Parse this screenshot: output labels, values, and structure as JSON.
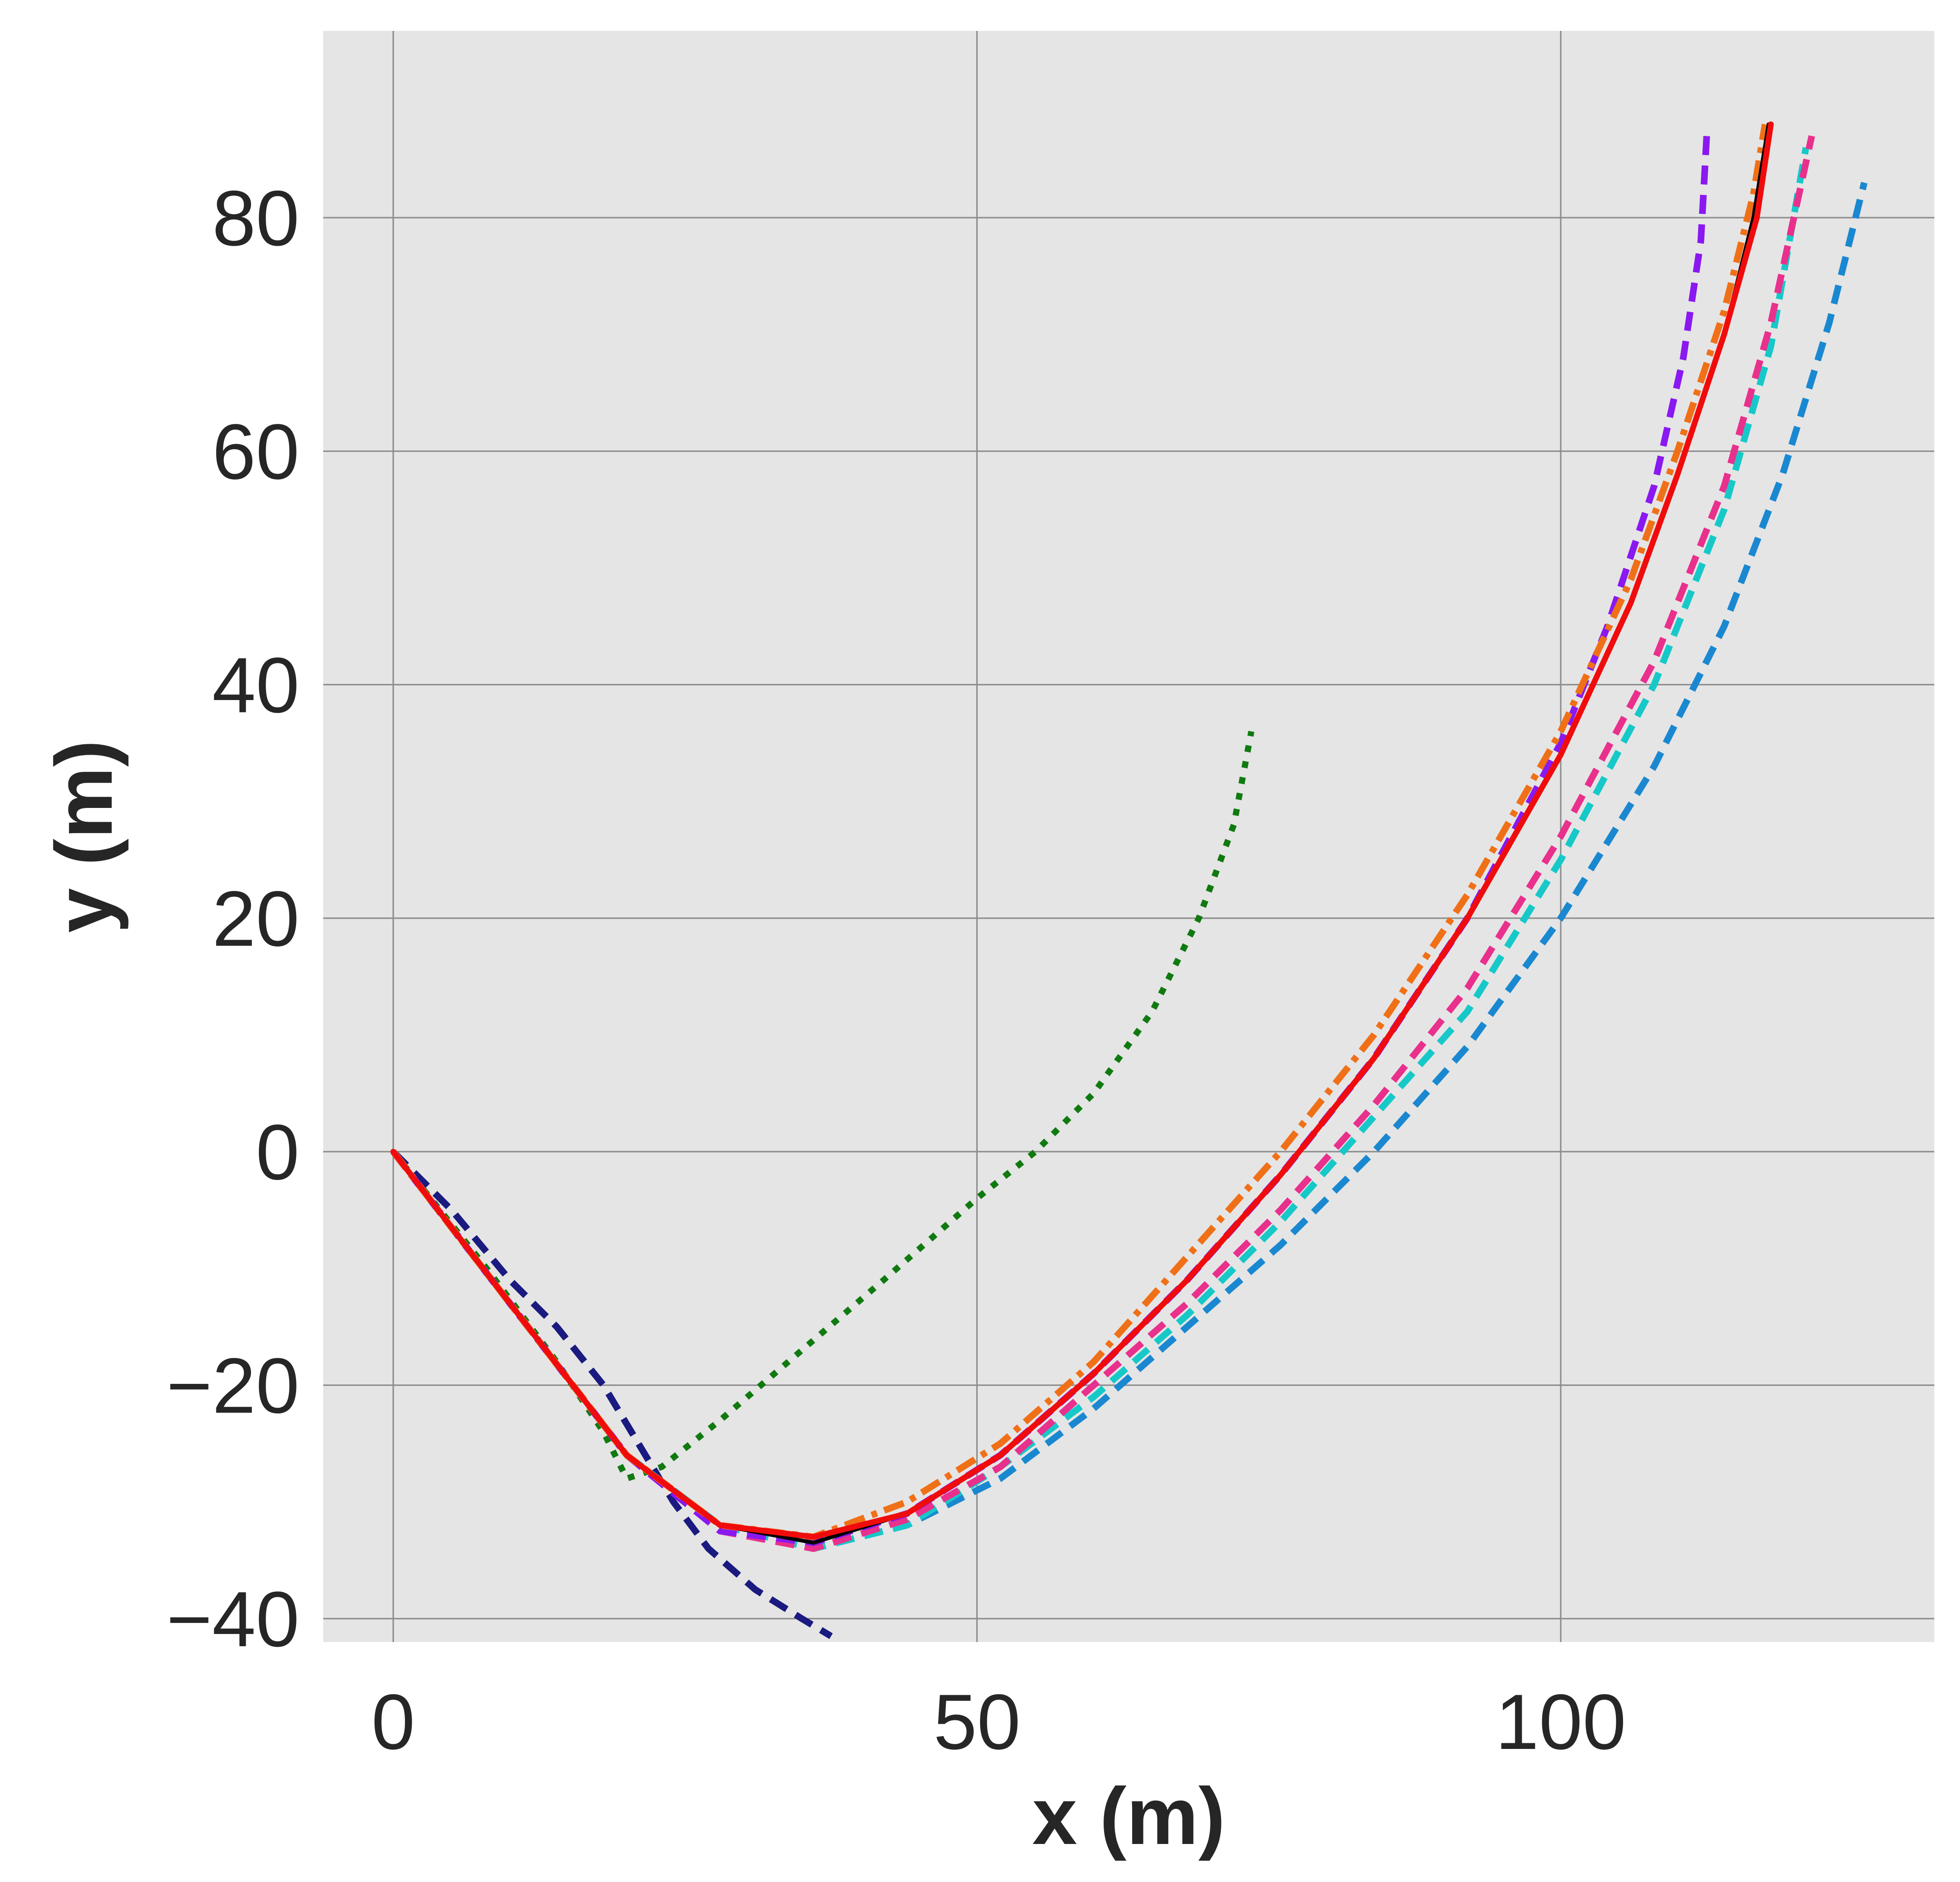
{
  "chart_data": {
    "type": "line",
    "title": "",
    "xlabel": "x (m)",
    "ylabel": "y (m)",
    "xlim": [
      -6,
      132
    ],
    "ylim": [
      -42,
      96
    ],
    "xticks": [
      0,
      50,
      100
    ],
    "yticks": [
      -40,
      -20,
      0,
      20,
      40,
      60,
      80
    ],
    "xtick_labels": [
      "0",
      "50",
      "100"
    ],
    "ytick_labels": [
      "−40",
      "−20",
      "0",
      "20",
      "40",
      "60",
      "80"
    ],
    "grid": true,
    "legend": "none",
    "background_color": "#e5e5e5",
    "series": [
      {
        "name": "green-dotted",
        "color": "#107a10",
        "style": "dotted",
        "x": [
          0,
          8,
          14,
          18,
          20,
          23,
          28,
          35,
          42,
          50,
          55,
          60,
          65,
          69,
          72,
          73.5
        ],
        "y": [
          0,
          -10,
          -18,
          -24,
          -28,
          -27,
          -23,
          -17,
          -11,
          -4,
          0,
          5,
          12,
          20,
          28,
          36
        ]
      },
      {
        "name": "navy-dashed",
        "color": "#1a1a80",
        "style": "dashed",
        "x": [
          0,
          5,
          10,
          14,
          18,
          21,
          24,
          27,
          31,
          35,
          37.5
        ],
        "y": [
          0,
          -5,
          -11,
          -15,
          -20,
          -25,
          -30,
          -34,
          -37.5,
          -40,
          -41.5
        ]
      },
      {
        "name": "blue-dashed",
        "color": "#1a88d0",
        "style": "dashed",
        "x": [
          0,
          10,
          20,
          28,
          36,
          44,
          52,
          60,
          68,
          76,
          84,
          92,
          100,
          108,
          114,
          119,
          123,
          126
        ],
        "y": [
          0,
          -13,
          -26,
          -32,
          -34,
          -32,
          -28,
          -22,
          -15,
          -8,
          0,
          9,
          20,
          33,
          45,
          58,
          71,
          83
        ]
      },
      {
        "name": "cyan-dashed",
        "color": "#17c8c8",
        "style": "dashed",
        "x": [
          0,
          10,
          20,
          28,
          36,
          44,
          52,
          60,
          68,
          76,
          84,
          92,
          100,
          108,
          114,
          118,
          121
        ],
        "y": [
          0,
          -13,
          -26,
          -32,
          -34,
          -32,
          -27,
          -21,
          -14,
          -6,
          3,
          12,
          25,
          40,
          55,
          69,
          86
        ]
      },
      {
        "name": "magenta-dashed",
        "color": "#e8308c",
        "style": "dashed",
        "x": [
          0,
          10,
          20,
          28,
          36,
          44,
          52,
          60,
          68,
          76,
          84,
          92,
          100,
          108,
          114,
          118,
          121.5
        ],
        "y": [
          0,
          -13,
          -26,
          -32.5,
          -34,
          -31.5,
          -27,
          -20,
          -13,
          -5,
          4,
          14,
          27,
          42,
          57,
          71,
          87
        ]
      },
      {
        "name": "purple-dashed",
        "color": "#8a18f0",
        "style": "dashed",
        "x": [
          0,
          10,
          20,
          28,
          36,
          44,
          52,
          60,
          68,
          76,
          84,
          92,
          100,
          104,
          108,
          110.5,
          112,
          112.5
        ],
        "y": [
          0,
          -13,
          -26,
          -32.5,
          -33.5,
          -31,
          -26,
          -19,
          -11,
          -2,
          8,
          20,
          35,
          45,
          57,
          68,
          78,
          87
        ]
      },
      {
        "name": "orange-dashdot",
        "color": "#f07018",
        "style": "dashdot",
        "x": [
          0,
          10,
          20,
          28,
          36,
          44,
          52,
          60,
          68,
          76,
          84,
          92,
          100,
          106,
          110,
          114,
          116.5,
          117.5
        ],
        "y": [
          0,
          -13,
          -26,
          -32,
          -33,
          -30,
          -25,
          -18,
          -9,
          0,
          10,
          22,
          36,
          49,
          60,
          72,
          82,
          88
        ]
      },
      {
        "name": "black-solid",
        "color": "#000000",
        "style": "solid",
        "x": [
          0,
          10,
          20,
          28,
          36,
          44,
          52,
          60,
          68,
          76,
          84,
          92,
          100,
          106,
          110,
          114,
          116.5,
          117.8
        ],
        "y": [
          0,
          -13,
          -26,
          -32,
          -33.5,
          -31,
          -26,
          -19,
          -11,
          -2,
          8,
          20,
          34,
          47,
          58,
          70,
          80,
          88
        ]
      },
      {
        "name": "red-solid",
        "color": "#f00c0c",
        "style": "solid",
        "x": [
          0,
          10,
          20,
          28,
          36,
          44,
          52,
          60,
          68,
          76,
          84,
          92,
          100,
          106,
          110,
          114,
          116.8,
          118
        ],
        "y": [
          0,
          -13,
          -26,
          -32,
          -33,
          -31,
          -26,
          -19,
          -11,
          -2,
          8,
          20,
          34,
          47,
          58,
          70,
          80,
          88
        ]
      }
    ]
  }
}
